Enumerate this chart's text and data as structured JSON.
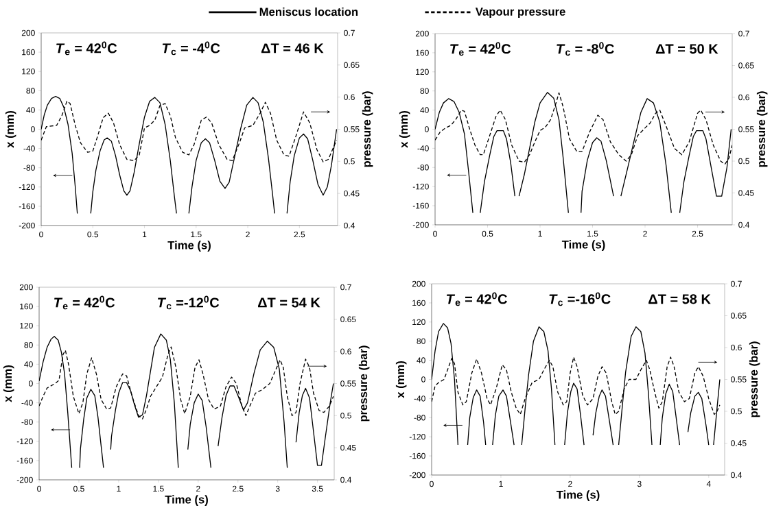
{
  "chart_data": [
    {
      "type": "line",
      "xlabel": "Time (s)",
      "ylabel": "x (mm)",
      "y2label": "pressure (bar)",
      "legend": "top",
      "annotations": [
        "*T*$_{e}$ = 42$^{0}$C",
        "*T*$_{c}$ = -4$^{0}$C",
        "ΔT = 46 K"
      ],
      "xlim": [
        0,
        2.87
      ],
      "xticks": [
        0,
        0.5,
        1,
        1.5,
        2,
        2.5
      ],
      "ylim": [
        -200,
        200
      ],
      "yticks": [
        -200,
        -160,
        -120,
        -80,
        -40,
        0,
        40,
        80,
        120,
        160,
        200
      ],
      "y2lim": [
        0.4,
        0.7
      ],
      "y2ticks": [
        0.4,
        0.45,
        0.5,
        0.55,
        0.6,
        0.65,
        0.7
      ],
      "series": [
        {
          "name": "Meniscus location",
          "color": "#000000",
          "line_style": "solid",
          "x": [
            0,
            0.03,
            0.06,
            0.1,
            0.14,
            0.18,
            0.22,
            0.26,
            0.3,
            0.33,
            0.35,
            0.4,
            0.48,
            0.5,
            0.53,
            0.57,
            0.61,
            0.64,
            0.68,
            0.72,
            0.76,
            0.8,
            0.83,
            0.86,
            0.9,
            0.95,
            1.0,
            1.05,
            1.1,
            1.15,
            1.2,
            1.25,
            1.29,
            1.31,
            1.37,
            1.43,
            1.46,
            1.5,
            1.55,
            1.59,
            1.63,
            1.68,
            1.73,
            1.78,
            1.82,
            1.87,
            1.93,
            1.99,
            2.05,
            2.1,
            2.15,
            2.2,
            2.24,
            2.26,
            2.32,
            2.38,
            2.41,
            2.45,
            2.5,
            2.54,
            2.58,
            2.63,
            2.68,
            2.73,
            2.77,
            2.81,
            2.86
          ],
          "values": [
            0,
            30,
            50,
            64,
            68,
            64,
            45,
            10,
            -50,
            -120,
            -175,
            null,
            -175,
            -130,
            -85,
            -45,
            -22,
            -18,
            -25,
            -55,
            -95,
            -128,
            -137,
            -128,
            -90,
            -30,
            25,
            58,
            66,
            55,
            10,
            -65,
            -140,
            -175,
            null,
            -175,
            -120,
            -65,
            -28,
            -20,
            -28,
            -65,
            -108,
            -123,
            -110,
            -60,
            0,
            50,
            66,
            55,
            15,
            -60,
            -135,
            -175,
            null,
            -175,
            -110,
            -55,
            -18,
            -10,
            -20,
            -65,
            -115,
            -137,
            -120,
            -75,
            0
          ]
        },
        {
          "name": "Vapour pressure",
          "color": "#000000",
          "line_style": "dashed",
          "axis": "y2",
          "x": [
            0,
            0.05,
            0.15,
            0.2,
            0.25,
            0.28,
            0.33,
            0.38,
            0.45,
            0.5,
            0.55,
            0.6,
            0.65,
            0.7,
            0.76,
            0.83,
            0.9,
            0.95,
            1.0,
            1.05,
            1.1,
            1.15,
            1.2,
            1.25,
            1.3,
            1.37,
            1.43,
            1.48,
            1.55,
            1.6,
            1.65,
            1.72,
            1.8,
            1.85,
            1.92,
            1.97,
            2.05,
            2.12,
            2.17,
            2.22,
            2.28,
            2.35,
            2.4,
            2.47,
            2.54,
            2.6,
            2.67,
            2.73,
            2.78,
            2.86
          ],
          "values": [
            0.533,
            0.554,
            0.556,
            0.571,
            0.594,
            0.59,
            0.556,
            0.529,
            0.514,
            0.516,
            0.541,
            0.568,
            0.575,
            0.56,
            0.526,
            0.503,
            0.501,
            0.51,
            0.552,
            0.556,
            0.564,
            0.587,
            0.59,
            0.571,
            0.537,
            0.514,
            0.51,
            0.526,
            0.564,
            0.569,
            0.56,
            0.526,
            0.503,
            0.501,
            0.529,
            0.552,
            0.556,
            0.575,
            0.592,
            0.575,
            0.533,
            0.51,
            0.508,
            0.541,
            0.577,
            0.56,
            0.518,
            0.499,
            0.503,
            0.533
          ]
        }
      ]
    },
    {
      "type": "line",
      "xlabel": "Time (s)",
      "ylabel": "x (mm)",
      "y2label": "pressure (bar)",
      "annotations": [
        "*T*$_{e}$ = 42$^{0}$C",
        "*T*$_{c}$ = -8$^{0}$C",
        "ΔT = 50 K"
      ],
      "xlim": [
        0,
        2.83
      ],
      "xticks": [
        0,
        0.5,
        1,
        1.5,
        2,
        2.5
      ],
      "ylim": [
        -200,
        200
      ],
      "yticks": [
        -200,
        -160,
        -120,
        -80,
        -40,
        0,
        40,
        80,
        120,
        160,
        200
      ],
      "y2lim": [
        0.4,
        0.7
      ],
      "y2ticks": [
        0.4,
        0.45,
        0.5,
        0.55,
        0.6,
        0.65,
        0.7
      ],
      "series": [
        {
          "color": "#000000",
          "line_style": "solid",
          "x": [
            0,
            0.04,
            0.08,
            0.13,
            0.18,
            0.23,
            0.28,
            0.32,
            0.36,
            0.4,
            0.43,
            0.47,
            0.52,
            0.56,
            0.59,
            0.65,
            0.68,
            0.72,
            0.76,
            0.78,
            0.8,
            0.85,
            0.9,
            0.95,
            1.0,
            1.07,
            1.13,
            1.18,
            1.22,
            1.27,
            1.33,
            1.39,
            1.4,
            1.45,
            1.5,
            1.54,
            1.58,
            1.63,
            1.7,
            1.74,
            1.77,
            1.83,
            1.9,
            1.96,
            2.02,
            2.08,
            2.14,
            2.2,
            2.25,
            2.29,
            2.33,
            2.37,
            2.42,
            2.46,
            2.49,
            2.55,
            2.58,
            2.63,
            2.68,
            2.73,
            2.78,
            2.82
          ],
          "values": [
            0,
            35,
            55,
            64,
            58,
            35,
            -10,
            -90,
            -175,
            null,
            -175,
            -110,
            -55,
            -15,
            -3,
            -3,
            -20,
            -70,
            -140,
            null,
            -140,
            -95,
            -40,
            15,
            55,
            77,
            65,
            20,
            -60,
            -175,
            null,
            -175,
            -130,
            -65,
            -28,
            -18,
            -25,
            -65,
            -140,
            null,
            -140,
            -85,
            -20,
            35,
            64,
            55,
            15,
            -75,
            -175,
            null,
            -175,
            -110,
            -55,
            -15,
            -3,
            -3,
            -20,
            -80,
            -140,
            -140,
            -80,
            0
          ]
        },
        {
          "color": "#000000",
          "line_style": "dashed",
          "axis": "y2",
          "x": [
            0,
            0.05,
            0.1,
            0.15,
            0.2,
            0.25,
            0.28,
            0.33,
            0.38,
            0.43,
            0.46,
            0.52,
            0.58,
            0.62,
            0.67,
            0.73,
            0.8,
            0.85,
            0.9,
            0.95,
            1.0,
            1.05,
            1.1,
            1.15,
            1.18,
            1.22,
            1.28,
            1.35,
            1.4,
            1.47,
            1.55,
            1.6,
            1.67,
            1.75,
            1.82,
            1.87,
            1.93,
            2.0,
            2.05,
            2.1,
            2.14,
            2.2,
            2.28,
            2.35,
            2.42,
            2.5,
            2.53,
            2.58,
            2.65,
            2.72,
            2.76,
            2.8,
            2.83
          ],
          "values": [
            0.533,
            0.546,
            0.552,
            0.556,
            0.566,
            0.58,
            0.578,
            0.55,
            0.525,
            0.51,
            0.51,
            0.54,
            0.57,
            0.58,
            0.565,
            0.525,
            0.5,
            0.498,
            0.51,
            0.53,
            0.548,
            0.553,
            0.565,
            0.59,
            0.607,
            0.585,
            0.535,
            0.515,
            0.515,
            0.545,
            0.572,
            0.565,
            0.53,
            0.51,
            0.5,
            0.51,
            0.54,
            0.552,
            0.56,
            0.575,
            0.58,
            0.555,
            0.52,
            0.51,
            0.53,
            0.575,
            0.58,
            0.565,
            0.525,
            0.5,
            0.495,
            0.505,
            0.525
          ]
        }
      ]
    },
    {
      "type": "line",
      "xlabel": "Time (s)",
      "ylabel": "x (mm)",
      "y2label": "pressure (bar)",
      "annotations": [
        "*T*$_{e}$ = 42$^{0}$C",
        "*T*$_{c}$ =-12$^{0}$C",
        "ΔT = 54 K"
      ],
      "xlim": [
        0,
        3.71
      ],
      "xticks": [
        0,
        0.5,
        1,
        1.5,
        2,
        2.5,
        3,
        3.5
      ],
      "ylim": [
        -200,
        200
      ],
      "yticks": [
        -200,
        -160,
        -120,
        -80,
        -40,
        0,
        40,
        80,
        120,
        160,
        200
      ],
      "y2lim": [
        0.4,
        0.7
      ],
      "y2ticks": [
        0.4,
        0.45,
        0.5,
        0.55,
        0.6,
        0.65,
        0.7
      ],
      "series": [
        {
          "color": "#000000",
          "line_style": "solid",
          "x": [
            0,
            0.05,
            0.1,
            0.15,
            0.19,
            0.24,
            0.28,
            0.32,
            0.36,
            0.41,
            0.46,
            0.51,
            0.52,
            0.56,
            0.6,
            0.65,
            0.7,
            0.74,
            0.78,
            0.81,
            0.85,
            0.9,
            0.91,
            0.96,
            1.0,
            1.05,
            1.1,
            1.15,
            1.2,
            1.25,
            1.3,
            1.35,
            1.4,
            1.45,
            1.53,
            1.6,
            1.65,
            1.7,
            1.75,
            1.8,
            1.87,
            1.9,
            1.95,
            2.0,
            2.05,
            2.1,
            2.16,
            2.2,
            2.25,
            2.3,
            2.35,
            2.4,
            2.45,
            2.5,
            2.57,
            2.62,
            2.7,
            2.78,
            2.87,
            2.95,
            3.02,
            3.08,
            3.12,
            3.17,
            3.23,
            3.27,
            3.31,
            3.35,
            3.4,
            3.45,
            3.5,
            3.55,
            3.6,
            3.66,
            3.7
          ],
          "values": [
            5,
            45,
            75,
            92,
            98,
            90,
            65,
            20,
            -60,
            -175,
            null,
            -175,
            -135,
            -75,
            -30,
            -12,
            -25,
            -70,
            -130,
            -175,
            null,
            -137,
            -110,
            -55,
            -20,
            2,
            2,
            -15,
            -45,
            -70,
            -65,
            -25,
            25,
            75,
            103,
            90,
            50,
            -40,
            -175,
            null,
            -137,
            -85,
            -40,
            -22,
            -35,
            -90,
            -175,
            null,
            -130,
            -70,
            -25,
            -5,
            -5,
            -25,
            -55,
            -40,
            20,
            70,
            88,
            75,
            30,
            -80,
            -175,
            null,
            -122,
            -60,
            -25,
            -10,
            -30,
            -100,
            -170,
            -170,
            -110,
            -40,
            0
          ]
        },
        {
          "color": "#000000",
          "line_style": "dashed",
          "axis": "y2",
          "x": [
            0,
            0.05,
            0.1,
            0.2,
            0.25,
            0.3,
            0.33,
            0.37,
            0.43,
            0.5,
            0.55,
            0.6,
            0.66,
            0.72,
            0.78,
            0.85,
            0.9,
            0.97,
            1.05,
            1.1,
            1.17,
            1.25,
            1.3,
            1.35,
            1.4,
            1.5,
            1.55,
            1.62,
            1.66,
            1.72,
            1.78,
            1.83,
            1.9,
            1.96,
            2.01,
            2.06,
            2.13,
            2.2,
            2.28,
            2.35,
            2.42,
            2.48,
            2.55,
            2.6,
            2.65,
            2.72,
            2.8,
            2.9,
            2.97,
            3.03,
            3.07,
            3.12,
            3.18,
            3.23,
            3.28,
            3.35,
            3.4,
            3.45,
            3.52,
            3.58,
            3.65,
            3.7
          ],
          "values": [
            0.515,
            0.53,
            0.543,
            0.55,
            0.555,
            0.595,
            0.602,
            0.58,
            0.53,
            0.503,
            0.52,
            0.565,
            0.59,
            0.565,
            0.525,
            0.51,
            0.512,
            0.545,
            0.565,
            0.562,
            0.53,
            0.5,
            0.495,
            0.51,
            0.53,
            0.55,
            0.56,
            0.595,
            0.607,
            0.575,
            0.525,
            0.503,
            0.53,
            0.575,
            0.587,
            0.565,
            0.525,
            0.51,
            0.515,
            0.545,
            0.56,
            0.55,
            0.515,
            0.5,
            0.515,
            0.535,
            0.54,
            0.55,
            0.57,
            0.587,
            0.575,
            0.53,
            0.5,
            0.505,
            0.55,
            0.588,
            0.575,
            0.535,
            0.508,
            0.505,
            0.515,
            0.53
          ]
        }
      ]
    },
    {
      "type": "line",
      "xlabel": "Time (s)",
      "ylabel": "x (mm)",
      "y2label": "pressure (bar)",
      "annotations": [
        "*T*$_{e}$ = 42$^{0}$C",
        "*T*$_{c}$ =-16$^{0}$C",
        "ΔT = 58 K"
      ],
      "xlim": [
        0,
        4.23
      ],
      "xticks": [
        0,
        1,
        2,
        3,
        4
      ],
      "ylim": [
        -200,
        200
      ],
      "yticks": [
        -200,
        -160,
        -120,
        -80,
        -40,
        0,
        40,
        80,
        120,
        160,
        200
      ],
      "y2lim": [
        0.4,
        0.7
      ],
      "y2ticks": [
        0.4,
        0.45,
        0.5,
        0.55,
        0.6,
        0.65,
        0.7
      ],
      "series": [
        {
          "color": "#000000",
          "line_style": "solid",
          "x": [
            0,
            0.05,
            0.1,
            0.17,
            0.23,
            0.28,
            0.33,
            0.38,
            0.45,
            0.52,
            0.55,
            0.6,
            0.65,
            0.7,
            0.75,
            0.78,
            0.83,
            0.88,
            0.92,
            0.97,
            1.03,
            1.08,
            1.14,
            1.19,
            1.25,
            1.3,
            1.35,
            1.4,
            1.47,
            1.55,
            1.62,
            1.68,
            1.73,
            1.78,
            1.85,
            1.92,
            1.96,
            2.01,
            2.05,
            2.1,
            2.15,
            2.2,
            2.27,
            2.33,
            2.37,
            2.42,
            2.46,
            2.51,
            2.57,
            2.62,
            2.66,
            2.7,
            2.75,
            2.8,
            2.88,
            2.95,
            3.02,
            3.08,
            3.13,
            3.18,
            3.24,
            3.3,
            3.33,
            3.38,
            3.43,
            3.48,
            3.53,
            3.58,
            3.64,
            3.7,
            3.74,
            3.8,
            3.85,
            3.9,
            3.96,
            4.0,
            4.04,
            4.07,
            4.12,
            4.16
          ],
          "values": [
            0,
            60,
            100,
            117,
            108,
            75,
            0,
            -137,
            null,
            -137,
            -80,
            -38,
            -22,
            -35,
            -90,
            -137,
            null,
            -137,
            -75,
            -35,
            -22,
            -35,
            -90,
            -137,
            null,
            -137,
            -60,
            10,
            80,
            110,
            100,
            60,
            -20,
            -137,
            null,
            -137,
            -70,
            -25,
            -8,
            -20,
            -75,
            -137,
            null,
            -117,
            -70,
            -35,
            -22,
            -35,
            -90,
            -137,
            null,
            -137,
            -60,
            15,
            90,
            110,
            100,
            55,
            -30,
            -137,
            null,
            -137,
            -80,
            -30,
            -10,
            -25,
            -80,
            -137,
            null,
            -110,
            -70,
            -35,
            -27,
            -40,
            -95,
            -137,
            null,
            -137,
            -60,
            0
          ]
        },
        {
          "color": "#000000",
          "line_style": "dashed",
          "axis": "y2",
          "x": [
            0,
            0.05,
            0.1,
            0.18,
            0.23,
            0.29,
            0.33,
            0.38,
            0.45,
            0.5,
            0.58,
            0.65,
            0.72,
            0.8,
            0.85,
            0.93,
            1.02,
            1.08,
            1.15,
            1.22,
            1.28,
            1.35,
            1.45,
            1.55,
            1.62,
            1.7,
            1.75,
            1.82,
            1.9,
            1.95,
            2.0,
            2.05,
            2.1,
            2.18,
            2.25,
            2.33,
            2.4,
            2.46,
            2.52,
            2.6,
            2.65,
            2.7,
            2.78,
            2.85,
            2.95,
            3.02,
            3.1,
            3.15,
            3.22,
            3.28,
            3.33,
            3.4,
            3.45,
            3.5,
            3.57,
            3.65,
            3.72,
            3.8,
            3.85,
            3.92,
            4.0,
            4.08,
            4.12,
            4.16
          ],
          "values": [
            0.515,
            0.54,
            0.545,
            0.55,
            0.565,
            0.583,
            0.575,
            0.53,
            0.51,
            0.515,
            0.56,
            0.582,
            0.56,
            0.52,
            0.51,
            0.535,
            0.573,
            0.565,
            0.53,
            0.505,
            0.495,
            0.52,
            0.545,
            0.55,
            0.565,
            0.58,
            0.57,
            0.53,
            0.51,
            0.515,
            0.56,
            0.585,
            0.57,
            0.525,
            0.51,
            0.52,
            0.555,
            0.57,
            0.56,
            0.515,
            0.495,
            0.5,
            0.535,
            0.55,
            0.55,
            0.565,
            0.58,
            0.565,
            0.53,
            0.505,
            0.515,
            0.57,
            0.585,
            0.57,
            0.53,
            0.515,
            0.52,
            0.56,
            0.57,
            0.555,
            0.52,
            0.495,
            0.5,
            0.51
          ]
        }
      ]
    }
  ]
}
